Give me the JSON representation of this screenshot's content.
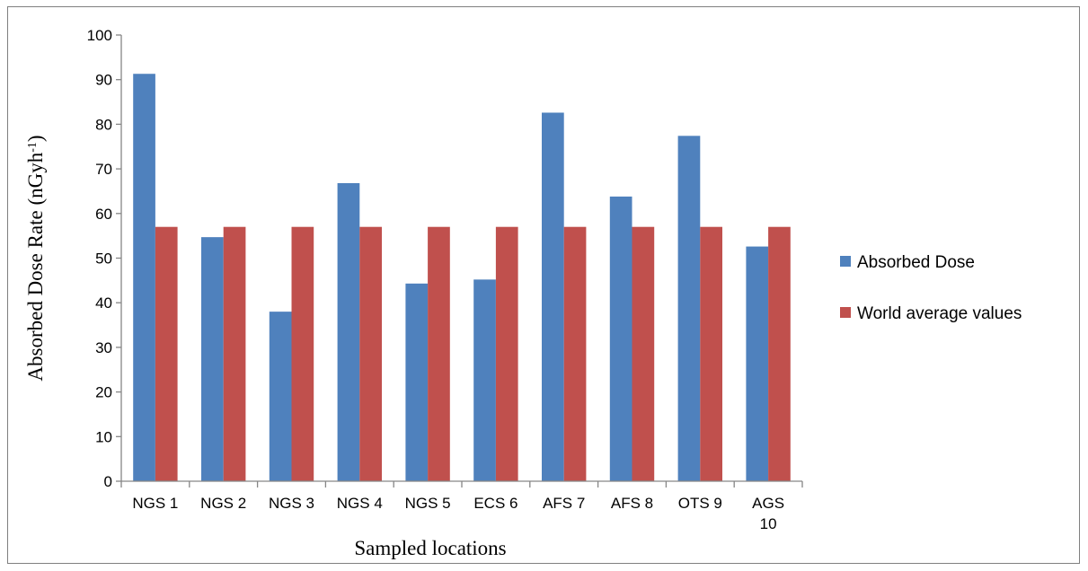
{
  "chart_data": {
    "type": "bar",
    "categories": [
      "NGS 1",
      "NGS 2",
      "NGS 3",
      "NGS 4",
      "NGS 5",
      "ECS 6",
      "AFS 7",
      "AFS 8",
      "OTS 9",
      "AGS 10"
    ],
    "series": [
      {
        "name": "Absorbed Dose",
        "color": "#4f81bd",
        "values": [
          91.3,
          54.7,
          38.0,
          66.8,
          44.3,
          45.2,
          82.6,
          63.8,
          77.4,
          52.6
        ]
      },
      {
        "name": "World average values",
        "color": "#c0504d",
        "values": [
          57,
          57,
          57,
          57,
          57,
          57,
          57,
          57,
          57,
          57
        ]
      }
    ],
    "xlabel": "Sampled locations",
    "ylabel_main": "Absorbed Dose Rate (nGyh",
    "ylabel_sup": "-1",
    "ylabel_end": ")",
    "ylim": [
      0,
      100
    ],
    "yticks": [
      "0",
      "10",
      "20",
      "30",
      "40",
      "50",
      "60",
      "70",
      "80",
      "90",
      "100"
    ],
    "grid": false,
    "legend_position": "right"
  }
}
